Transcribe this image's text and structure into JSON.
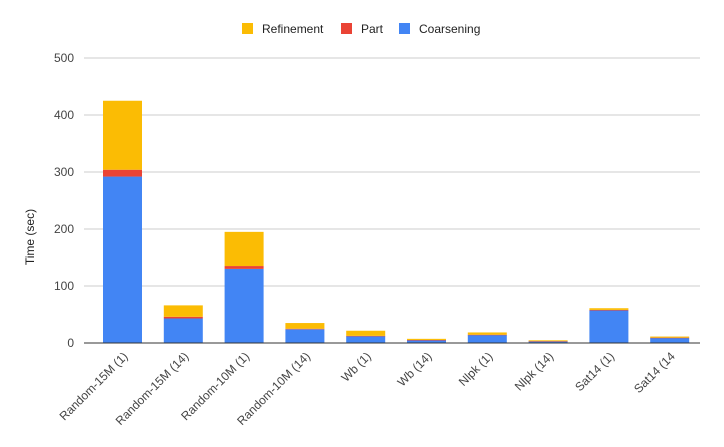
{
  "chart_data": {
    "type": "bar",
    "stacked": true,
    "title": "",
    "xlabel": "",
    "ylabel": "Time (sec)",
    "ylim": [
      0,
      500
    ],
    "yticks": [
      "0",
      "100",
      "200",
      "300",
      "400",
      "500"
    ],
    "grid": true,
    "legend_position": "top",
    "categories": [
      "Random-15M (1)",
      "Random-15M (14)",
      "Random-10M (1)",
      "Random-10M (14)",
      "Wb (1)",
      "Wb (14)",
      "Nlpk (1)",
      "Nlpk (14)",
      "Sat14 (1)",
      "Sat14 (14"
    ],
    "series": [
      {
        "name": "Coarsening",
        "color": "#4285f4",
        "values": [
          292,
          43,
          130,
          24,
          12,
          5,
          14,
          3,
          57,
          9
        ]
      },
      {
        "name": "Part",
        "color": "#ea4335",
        "values": [
          12,
          3,
          5,
          1,
          0.5,
          0.3,
          0.5,
          0.2,
          1,
          0.3
        ]
      },
      {
        "name": "Refinement",
        "color": "#fbbc04",
        "values": [
          121,
          20,
          60,
          10,
          9,
          2,
          4,
          1.5,
          3,
          2
        ]
      }
    ],
    "legend_order": [
      "Refinement",
      "Part",
      "Coarsening"
    ]
  }
}
